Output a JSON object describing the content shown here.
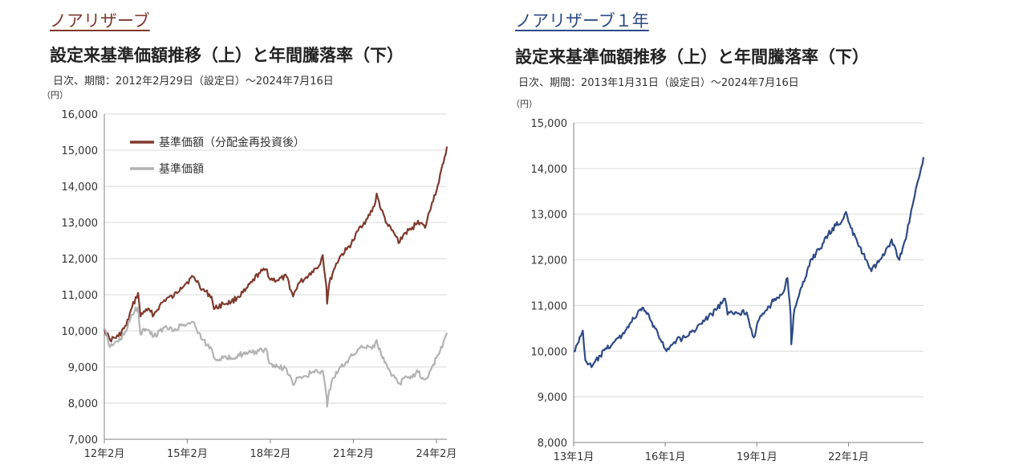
{
  "chart_data": [
    {
      "type": "line",
      "fund_name": "ノアリザーブ",
      "title": "設定来基準価額推移（上）と年間騰落率（下）",
      "subtitle": "日次、期間：2012年2月29日（設定日）～2024年7月16日",
      "unit": "（円）",
      "ylim": [
        7000,
        16000
      ],
      "yticks": [
        "7,000",
        "8,000",
        "9,000",
        "10,000",
        "11,000",
        "12,000",
        "13,000",
        "14,000",
        "15,000",
        "16,000"
      ],
      "xlim": [
        "2012-02-29",
        "2024-07-16"
      ],
      "xticks": [
        {
          "date": "2012-02-29",
          "label": "12年2月"
        },
        {
          "date": "2015-02-28",
          "label": "15年2月"
        },
        {
          "date": "2018-02-28",
          "label": "18年2月"
        },
        {
          "date": "2021-02-28",
          "label": "21年2月"
        },
        {
          "date": "2024-02-29",
          "label": "24年2月"
        }
      ],
      "grid": true,
      "legend_position": "top-left",
      "series": [
        {
          "name": "基準価額（分配金再投資後）",
          "color": "#7f3a2e",
          "points": [
            [
              "2012-02-29",
              10050
            ],
            [
              "2012-05-15",
              9750
            ],
            [
              "2012-09-01",
              9850
            ],
            [
              "2012-12-15",
              10150
            ],
            [
              "2013-03-01",
              10650
            ],
            [
              "2013-05-20",
              11050
            ],
            [
              "2013-06-20",
              10400
            ],
            [
              "2013-09-01",
              10600
            ],
            [
              "2013-12-15",
              10450
            ],
            [
              "2014-03-01",
              10700
            ],
            [
              "2014-06-01",
              10900
            ],
            [
              "2014-09-01",
              10950
            ],
            [
              "2014-12-01",
              11200
            ],
            [
              "2015-03-01",
              11350
            ],
            [
              "2015-05-15",
              11500
            ],
            [
              "2015-08-01",
              11300
            ],
            [
              "2015-09-15",
              11150
            ],
            [
              "2016-01-15",
              10950
            ],
            [
              "2016-02-15",
              10600
            ],
            [
              "2016-06-15",
              10750
            ],
            [
              "2016-10-01",
              10800
            ],
            [
              "2017-01-01",
              10950
            ],
            [
              "2017-04-01",
              11100
            ],
            [
              "2017-07-01",
              11350
            ],
            [
              "2017-10-01",
              11600
            ],
            [
              "2018-01-15",
              11700
            ],
            [
              "2018-02-15",
              11450
            ],
            [
              "2018-06-01",
              11400
            ],
            [
              "2018-10-01",
              11500
            ],
            [
              "2018-12-25",
              10950
            ],
            [
              "2019-03-01",
              11300
            ],
            [
              "2019-06-01",
              11450
            ],
            [
              "2019-09-01",
              11650
            ],
            [
              "2019-12-01",
              11800
            ],
            [
              "2020-01-20",
              12100
            ],
            [
              "2020-03-10",
              11200
            ],
            [
              "2020-03-18",
              10750
            ],
            [
              "2020-04-15",
              11300
            ],
            [
              "2020-06-15",
              11700
            ],
            [
              "2020-09-01",
              12050
            ],
            [
              "2020-12-01",
              12250
            ],
            [
              "2021-03-01",
              12500
            ],
            [
              "2021-06-01",
              12900
            ],
            [
              "2021-09-01",
              13100
            ],
            [
              "2021-12-01",
              13450
            ],
            [
              "2022-01-01",
              13800
            ],
            [
              "2022-03-01",
              13350
            ],
            [
              "2022-06-01",
              12900
            ],
            [
              "2022-09-01",
              12650
            ],
            [
              "2022-11-01",
              12450
            ],
            [
              "2023-01-01",
              12700
            ],
            [
              "2023-04-01",
              12800
            ],
            [
              "2023-07-01",
              13050
            ],
            [
              "2023-10-01",
              12850
            ],
            [
              "2024-01-01",
              13550
            ],
            [
              "2024-04-01",
              14100
            ],
            [
              "2024-07-16",
              15100
            ]
          ]
        },
        {
          "name": "基準価額",
          "color": "#b3b3b3",
          "points": [
            [
              "2012-02-29",
              10050
            ],
            [
              "2012-05-15",
              9550
            ],
            [
              "2012-09-01",
              9700
            ],
            [
              "2012-12-15",
              10000
            ],
            [
              "2013-03-01",
              10450
            ],
            [
              "2013-05-20",
              10650
            ],
            [
              "2013-06-20",
              9900
            ],
            [
              "2013-09-01",
              10050
            ],
            [
              "2013-12-15",
              9850
            ],
            [
              "2014-03-01",
              10000
            ],
            [
              "2014-06-01",
              10100
            ],
            [
              "2014-09-01",
              10000
            ],
            [
              "2014-12-01",
              10150
            ],
            [
              "2015-03-01",
              10200
            ],
            [
              "2015-05-15",
              10250
            ],
            [
              "2015-08-01",
              9950
            ],
            [
              "2015-09-15",
              9750
            ],
            [
              "2016-01-15",
              9500
            ],
            [
              "2016-02-15",
              9250
            ],
            [
              "2016-06-15",
              9250
            ],
            [
              "2016-10-01",
              9250
            ],
            [
              "2017-01-01",
              9350
            ],
            [
              "2017-04-01",
              9350
            ],
            [
              "2017-07-01",
              9400
            ],
            [
              "2017-10-01",
              9450
            ],
            [
              "2018-01-15",
              9450
            ],
            [
              "2018-02-15",
              9100
            ],
            [
              "2018-06-01",
              9000
            ],
            [
              "2018-10-01",
              8950
            ],
            [
              "2018-12-25",
              8500
            ],
            [
              "2019-03-01",
              8700
            ],
            [
              "2019-06-01",
              8750
            ],
            [
              "2019-09-01",
              8850
            ],
            [
              "2019-12-01",
              8850
            ],
            [
              "2020-01-20",
              8900
            ],
            [
              "2020-03-10",
              8200
            ],
            [
              "2020-03-18",
              7900
            ],
            [
              "2020-04-15",
              8350
            ],
            [
              "2020-06-15",
              8700
            ],
            [
              "2020-09-01",
              9000
            ],
            [
              "2020-12-01",
              9150
            ],
            [
              "2021-03-01",
              9350
            ],
            [
              "2021-06-01",
              9550
            ],
            [
              "2021-09-01",
              9600
            ],
            [
              "2021-12-01",
              9550
            ],
            [
              "2022-01-01",
              9750
            ],
            [
              "2022-03-01",
              9350
            ],
            [
              "2022-06-01",
              8950
            ],
            [
              "2022-09-01",
              8700
            ],
            [
              "2022-11-01",
              8550
            ],
            [
              "2023-01-01",
              8700
            ],
            [
              "2023-04-01",
              8750
            ],
            [
              "2023-07-01",
              8850
            ],
            [
              "2023-10-01",
              8650
            ],
            [
              "2024-01-01",
              9000
            ],
            [
              "2024-04-01",
              9350
            ],
            [
              "2024-07-16",
              9950
            ]
          ]
        }
      ]
    },
    {
      "type": "line",
      "fund_name": "ノアリザーブ１年",
      "title": "設定来基準価額推移（上）と年間騰落率（下）",
      "subtitle": "日次、期間：2013年1月31日（設定日）～2024年7月16日",
      "unit": "（円）",
      "ylim": [
        8000,
        15000
      ],
      "yticks": [
        "8,000",
        "9,000",
        "10,000",
        "11,000",
        "12,000",
        "13,000",
        "14,000",
        "15,000"
      ],
      "xlim": [
        "2013-01-31",
        "2024-07-16"
      ],
      "xticks": [
        {
          "date": "2013-01-31",
          "label": "13年1月"
        },
        {
          "date": "2016-01-31",
          "label": "16年1月"
        },
        {
          "date": "2019-01-31",
          "label": "19年1月"
        },
        {
          "date": "2022-01-31",
          "label": "22年1月"
        }
      ],
      "grid": true,
      "legend_position": "none",
      "series": [
        {
          "color": "#2e4a86",
          "points": [
            [
              "2013-01-31",
              10000
            ],
            [
              "2013-04-01",
              10200
            ],
            [
              "2013-05-20",
              10450
            ],
            [
              "2013-06-20",
              9800
            ],
            [
              "2013-09-01",
              9650
            ],
            [
              "2013-12-15",
              9900
            ],
            [
              "2014-03-01",
              10050
            ],
            [
              "2014-06-01",
              10200
            ],
            [
              "2014-09-01",
              10350
            ],
            [
              "2014-12-01",
              10600
            ],
            [
              "2015-03-01",
              10800
            ],
            [
              "2015-05-15",
              10950
            ],
            [
              "2015-08-01",
              10700
            ],
            [
              "2015-10-01",
              10500
            ],
            [
              "2016-01-01",
              10200
            ],
            [
              "2016-02-15",
              10000
            ],
            [
              "2016-06-15",
              10250
            ],
            [
              "2016-10-01",
              10300
            ],
            [
              "2017-01-01",
              10450
            ],
            [
              "2017-04-01",
              10600
            ],
            [
              "2017-07-01",
              10750
            ],
            [
              "2017-10-01",
              10900
            ],
            [
              "2018-01-15",
              11150
            ],
            [
              "2018-02-15",
              10800
            ],
            [
              "2018-06-01",
              10850
            ],
            [
              "2018-10-01",
              10850
            ],
            [
              "2018-12-25",
              10300
            ],
            [
              "2019-03-01",
              10700
            ],
            [
              "2019-06-01",
              10900
            ],
            [
              "2019-09-01",
              11150
            ],
            [
              "2019-12-01",
              11250
            ],
            [
              "2020-02-01",
              11600
            ],
            [
              "2020-03-10",
              10800
            ],
            [
              "2020-03-18",
              10150
            ],
            [
              "2020-04-15",
              10800
            ],
            [
              "2020-06-15",
              11200
            ],
            [
              "2020-09-01",
              11600
            ],
            [
              "2020-11-01",
              12000
            ],
            [
              "2021-03-01",
              12250
            ],
            [
              "2021-06-01",
              12550
            ],
            [
              "2021-09-01",
              12750
            ],
            [
              "2021-12-01",
              12900
            ],
            [
              "2022-01-01",
              13050
            ],
            [
              "2022-03-01",
              12700
            ],
            [
              "2022-06-01",
              12300
            ],
            [
              "2022-09-01",
              12000
            ],
            [
              "2022-11-01",
              11750
            ],
            [
              "2023-01-01",
              11900
            ],
            [
              "2023-04-01",
              12100
            ],
            [
              "2023-07-01",
              12450
            ],
            [
              "2023-10-01",
              12000
            ],
            [
              "2024-01-01",
              12600
            ],
            [
              "2024-04-01",
              13400
            ],
            [
              "2024-07-16",
              14250
            ]
          ]
        }
      ]
    }
  ]
}
